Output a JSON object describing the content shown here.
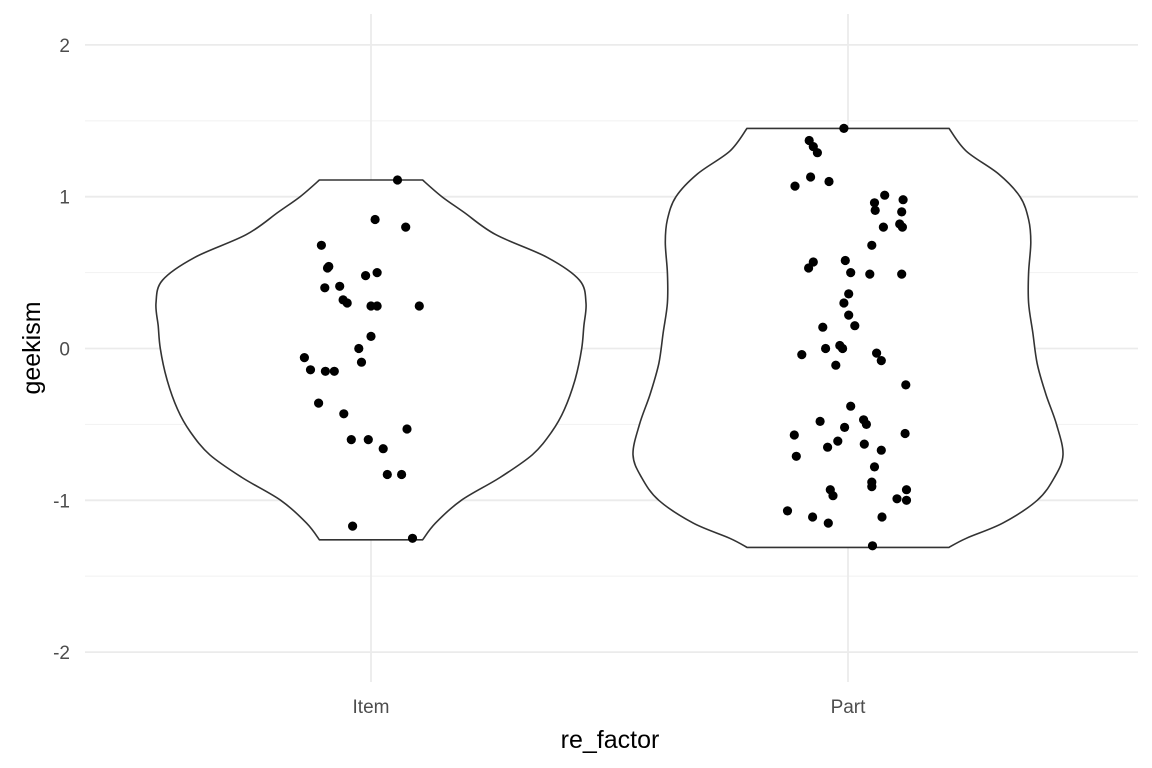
{
  "chart_data": {
    "type": "violin",
    "xlabel": "re_factor",
    "ylabel": "geekism",
    "categories": [
      "Item",
      "Part"
    ],
    "ylim": [
      -2.2,
      2.2
    ],
    "yticks": [
      -2,
      -1,
      0,
      1,
      2
    ],
    "ytick_labels": [
      "-2",
      "-1",
      "0",
      "1",
      "2"
    ],
    "grid": true,
    "violins": [
      {
        "category": "Item",
        "y_min": -1.26,
        "y_max": 1.11,
        "profile": [
          [
            -1.26,
            0.24
          ],
          [
            -1.15,
            0.3
          ],
          [
            -1.0,
            0.42
          ],
          [
            -0.85,
            0.6
          ],
          [
            -0.7,
            0.75
          ],
          [
            -0.55,
            0.84
          ],
          [
            -0.4,
            0.9
          ],
          [
            -0.2,
            0.95
          ],
          [
            0.0,
            0.98
          ],
          [
            0.15,
            0.99
          ],
          [
            0.3,
            1.0
          ],
          [
            0.45,
            0.97
          ],
          [
            0.6,
            0.82
          ],
          [
            0.75,
            0.58
          ],
          [
            0.9,
            0.43
          ],
          [
            1.0,
            0.33
          ],
          [
            1.11,
            0.24
          ]
        ],
        "points": [
          [
            0.39,
            1.11
          ],
          [
            0.06,
            0.85
          ],
          [
            0.51,
            0.8
          ],
          [
            -0.73,
            0.68
          ],
          [
            -0.62,
            0.54
          ],
          [
            -0.64,
            0.53
          ],
          [
            0.09,
            0.5
          ],
          [
            -0.08,
            0.48
          ],
          [
            -0.46,
            0.41
          ],
          [
            -0.68,
            0.4
          ],
          [
            -0.41,
            0.32
          ],
          [
            -0.35,
            0.3
          ],
          [
            0.0,
            0.28
          ],
          [
            0.09,
            0.28
          ],
          [
            0.71,
            0.28
          ],
          [
            0.0,
            0.08
          ],
          [
            -0.18,
            0.0
          ],
          [
            -0.14,
            -0.09
          ],
          [
            -0.98,
            -0.06
          ],
          [
            -0.89,
            -0.14
          ],
          [
            -0.67,
            -0.15
          ],
          [
            -0.54,
            -0.15
          ],
          [
            -0.77,
            -0.36
          ],
          [
            -0.4,
            -0.43
          ],
          [
            -0.29,
            -0.6
          ],
          [
            -0.04,
            -0.6
          ],
          [
            0.18,
            -0.66
          ],
          [
            0.53,
            -0.53
          ],
          [
            0.24,
            -0.83
          ],
          [
            0.45,
            -0.83
          ],
          [
            -0.27,
            -1.17
          ],
          [
            0.61,
            -1.25
          ]
        ]
      },
      {
        "category": "Part",
        "y_min": -1.31,
        "y_max": 1.45,
        "profile": [
          [
            -1.31,
            0.47
          ],
          [
            -1.25,
            0.55
          ],
          [
            -1.15,
            0.72
          ],
          [
            -1.0,
            0.88
          ],
          [
            -0.85,
            0.96
          ],
          [
            -0.7,
            1.0
          ],
          [
            -0.5,
            0.97
          ],
          [
            -0.3,
            0.92
          ],
          [
            -0.1,
            0.88
          ],
          [
            0.1,
            0.86
          ],
          [
            0.3,
            0.84
          ],
          [
            0.5,
            0.84
          ],
          [
            0.7,
            0.85
          ],
          [
            0.85,
            0.84
          ],
          [
            1.0,
            0.8
          ],
          [
            1.15,
            0.7
          ],
          [
            1.3,
            0.55
          ],
          [
            1.45,
            0.47
          ]
        ],
        "points": [
          [
            -0.06,
            1.45
          ],
          [
            -0.57,
            1.37
          ],
          [
            -0.51,
            1.33
          ],
          [
            -0.45,
            1.29
          ],
          [
            -0.55,
            1.13
          ],
          [
            -0.28,
            1.1
          ],
          [
            -0.78,
            1.07
          ],
          [
            0.54,
            1.01
          ],
          [
            0.81,
            0.98
          ],
          [
            0.39,
            0.96
          ],
          [
            0.4,
            0.91
          ],
          [
            0.79,
            0.9
          ],
          [
            0.76,
            0.82
          ],
          [
            0.52,
            0.8
          ],
          [
            0.8,
            0.8
          ],
          [
            0.35,
            0.68
          ],
          [
            -0.04,
            0.58
          ],
          [
            -0.51,
            0.57
          ],
          [
            -0.58,
            0.53
          ],
          [
            0.04,
            0.5
          ],
          [
            0.32,
            0.49
          ],
          [
            0.79,
            0.49
          ],
          [
            0.01,
            0.36
          ],
          [
            -0.06,
            0.3
          ],
          [
            0.01,
            0.22
          ],
          [
            0.1,
            0.15
          ],
          [
            -0.37,
            0.14
          ],
          [
            -0.12,
            0.02
          ],
          [
            -0.08,
            0.0
          ],
          [
            -0.33,
            0.0
          ],
          [
            -0.68,
            -0.04
          ],
          [
            0.42,
            -0.03
          ],
          [
            0.49,
            -0.08
          ],
          [
            -0.18,
            -0.11
          ],
          [
            0.85,
            -0.24
          ],
          [
            0.04,
            -0.38
          ],
          [
            -0.41,
            -0.48
          ],
          [
            0.23,
            -0.47
          ],
          [
            0.27,
            -0.5
          ],
          [
            -0.05,
            -0.52
          ],
          [
            -0.79,
            -0.57
          ],
          [
            0.84,
            -0.56
          ],
          [
            -0.15,
            -0.61
          ],
          [
            0.24,
            -0.63
          ],
          [
            -0.3,
            -0.65
          ],
          [
            0.49,
            -0.67
          ],
          [
            -0.76,
            -0.71
          ],
          [
            0.39,
            -0.78
          ],
          [
            0.35,
            -0.88
          ],
          [
            0.35,
            -0.91
          ],
          [
            -0.26,
            -0.93
          ],
          [
            -0.22,
            -0.97
          ],
          [
            0.72,
            -0.99
          ],
          [
            0.86,
            -0.93
          ],
          [
            0.86,
            -1.0
          ],
          [
            -0.89,
            -1.07
          ],
          [
            -0.52,
            -1.11
          ],
          [
            -0.29,
            -1.15
          ],
          [
            0.5,
            -1.11
          ],
          [
            0.36,
            -1.3
          ]
        ]
      }
    ]
  }
}
